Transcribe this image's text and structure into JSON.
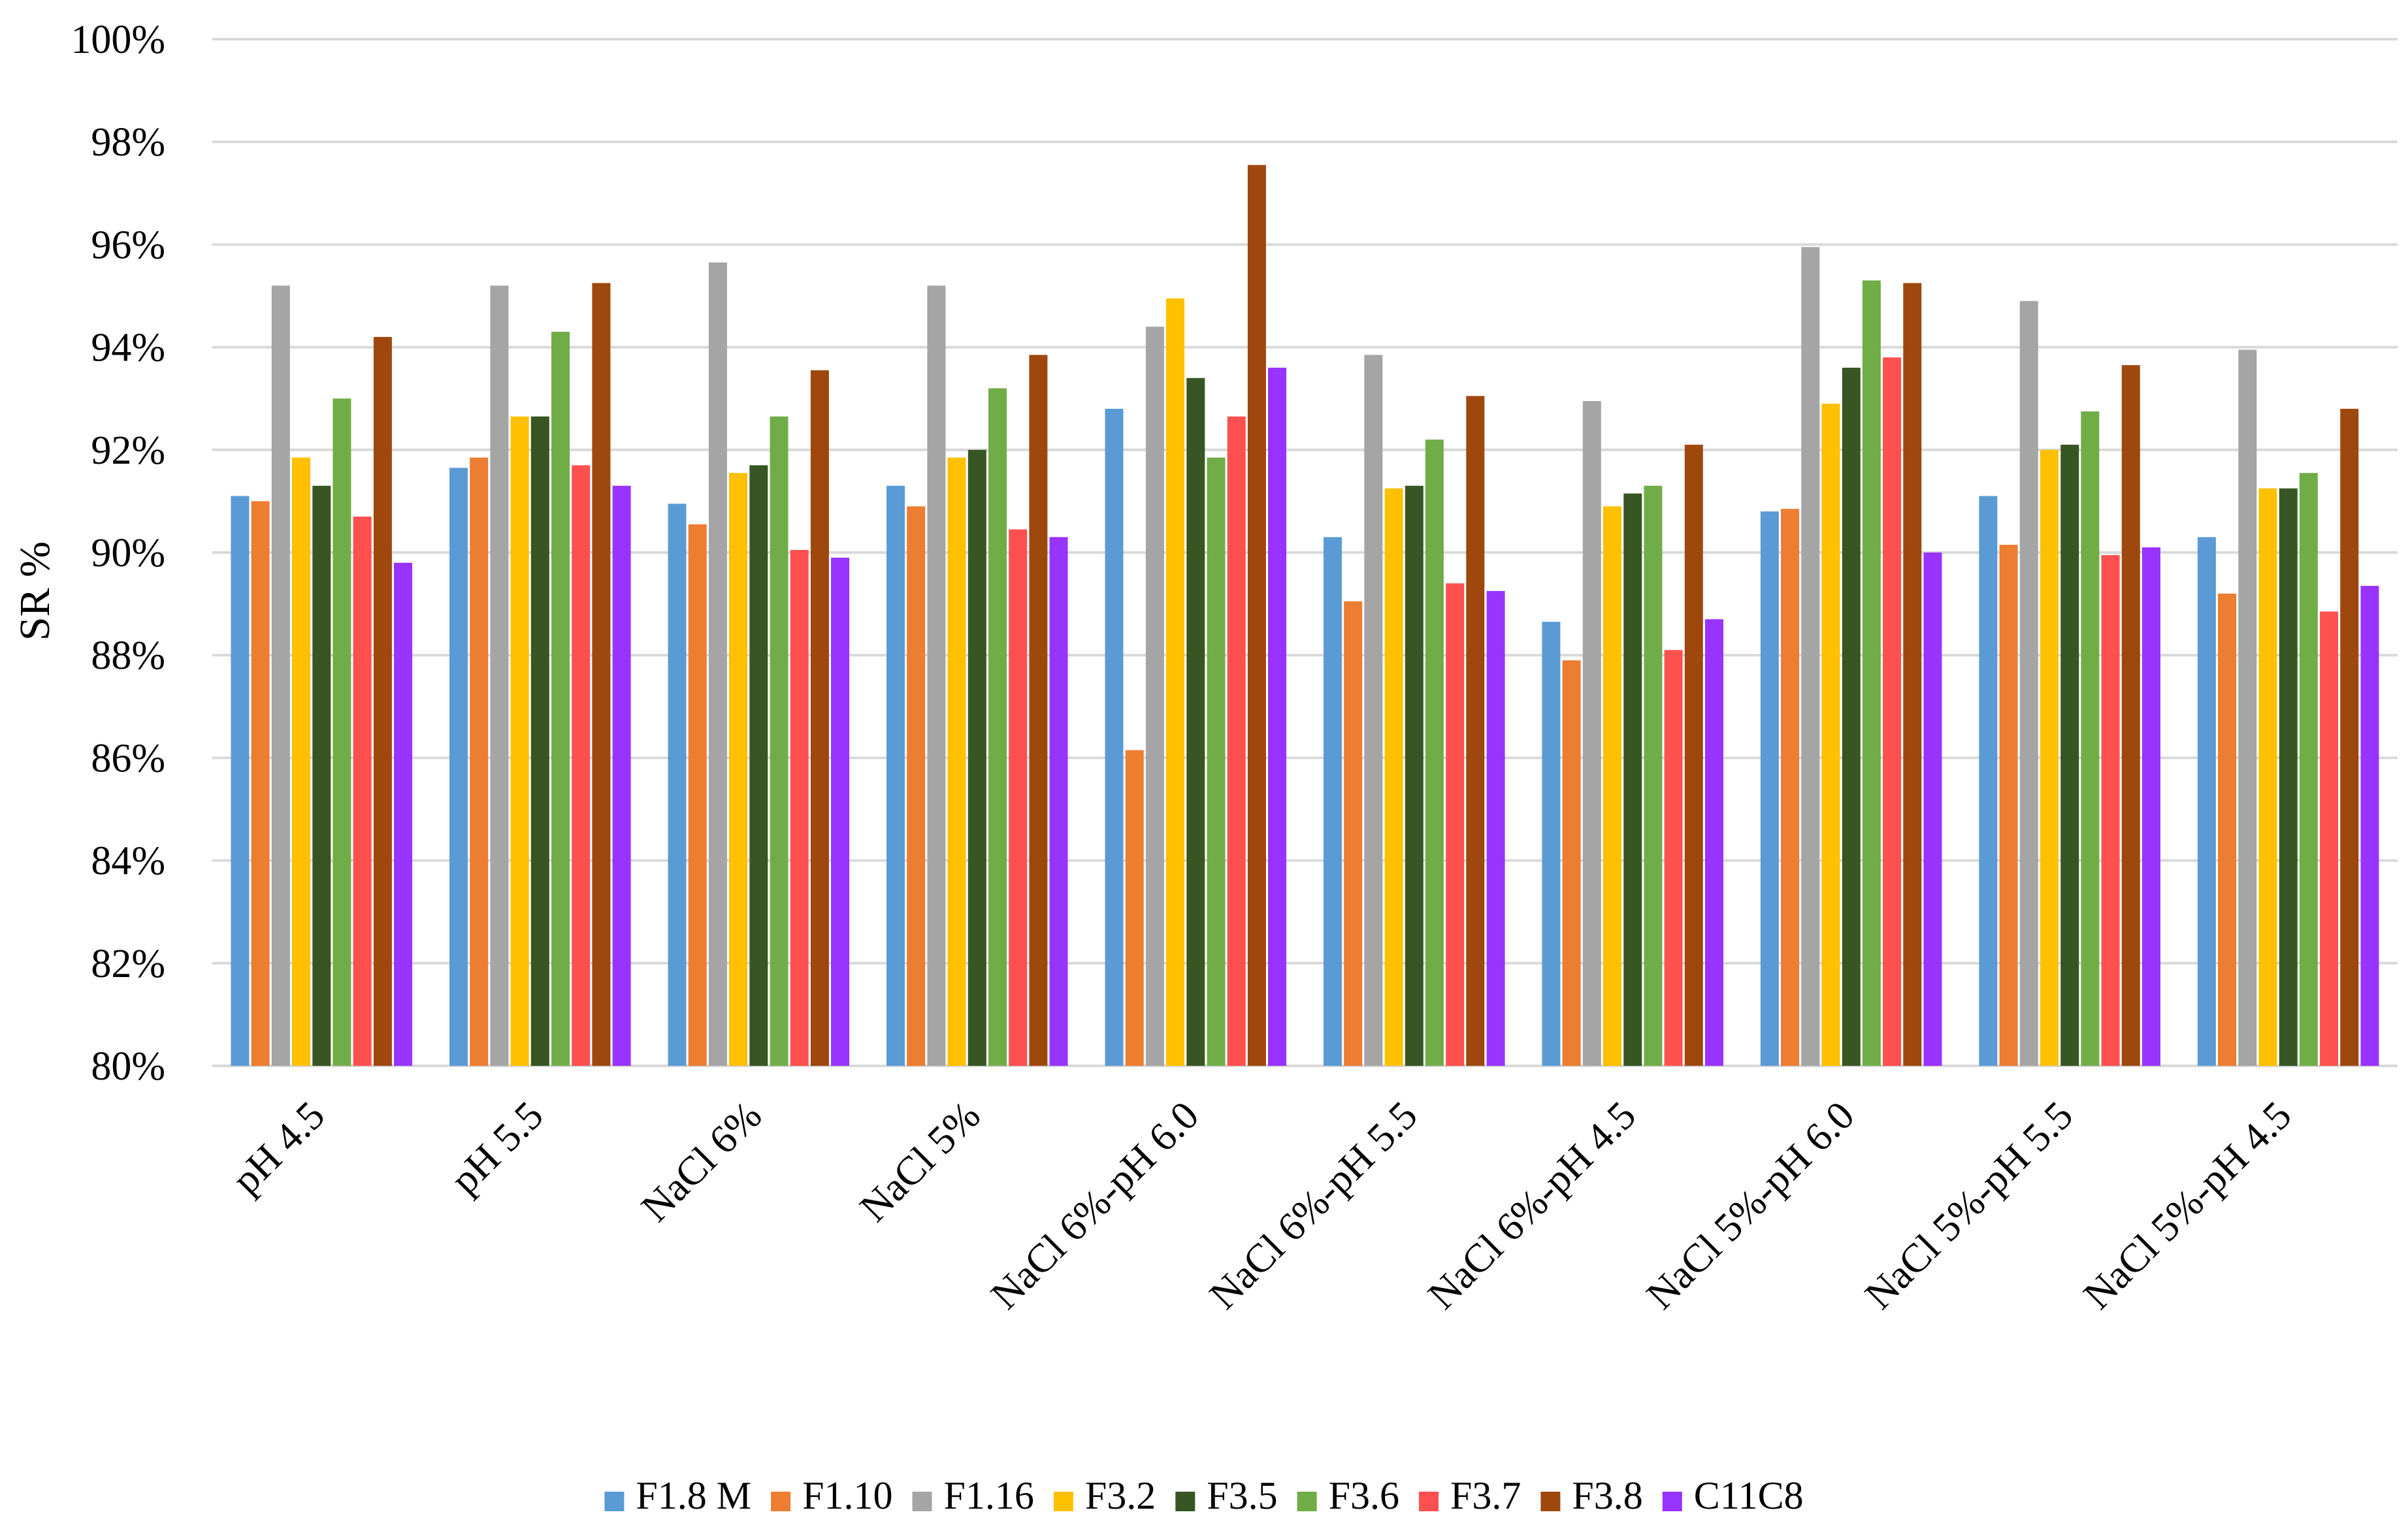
{
  "chart_data": {
    "type": "bar",
    "title": "",
    "xlabel": "",
    "ylabel": "SR %",
    "ylim": [
      80,
      100
    ],
    "ytick_step": 2,
    "ytick_suffix": "%",
    "grid": true,
    "legend_position": "bottom",
    "categories": [
      "pH 4.5",
      "pH 5.5",
      "NaCl 6%",
      "NaCl 5%",
      "NaCl 6%-pH 6.0",
      "NaCl 6%-pH 5.5",
      "NaCl 6%-pH 4.5",
      "NaCl 5%-pH 6.0",
      "NaCl 5%-pH 5.5",
      "NaCl 5%-pH 4.5"
    ],
    "series": [
      {
        "name": "F1.8 M",
        "color": "#5b9bd5",
        "values": [
          91.1,
          91.65,
          90.95,
          91.3,
          92.8,
          90.3,
          88.65,
          90.8,
          91.1,
          90.3
        ]
      },
      {
        "name": "F1.10",
        "color": "#ed7d31",
        "values": [
          91.0,
          91.85,
          90.55,
          90.9,
          86.15,
          89.05,
          87.9,
          90.85,
          90.15,
          89.2
        ]
      },
      {
        "name": "F1.16",
        "color": "#a5a5a5",
        "values": [
          95.2,
          95.2,
          95.65,
          95.2,
          94.4,
          93.85,
          92.95,
          95.95,
          94.9,
          93.95
        ]
      },
      {
        "name": "F3.2",
        "color": "#ffc000",
        "values": [
          91.85,
          92.65,
          91.55,
          91.85,
          94.95,
          91.25,
          90.9,
          92.9,
          92.0,
          91.25
        ]
      },
      {
        "name": "F3.5",
        "color": "#375623",
        "values": [
          91.3,
          92.65,
          91.7,
          92.0,
          93.4,
          91.3,
          91.15,
          93.6,
          92.1,
          91.25
        ]
      },
      {
        "name": "F3.6",
        "color": "#70ad47",
        "values": [
          93.0,
          94.3,
          92.65,
          93.2,
          91.85,
          92.2,
          91.3,
          95.3,
          92.75,
          91.55
        ]
      },
      {
        "name": "F3.7",
        "color": "#ff5050",
        "values": [
          90.7,
          91.7,
          90.05,
          90.45,
          92.65,
          89.4,
          88.1,
          93.8,
          89.95,
          88.85
        ]
      },
      {
        "name": "F3.8",
        "color": "#9e480e",
        "values": [
          94.2,
          95.25,
          93.55,
          93.85,
          97.55,
          93.05,
          92.1,
          95.25,
          93.65,
          92.8
        ]
      },
      {
        "name": "C11C8",
        "color": "#9933ff",
        "values": [
          89.8,
          91.3,
          89.9,
          90.3,
          93.6,
          89.25,
          88.7,
          90.0,
          90.1,
          89.35
        ]
      }
    ]
  }
}
